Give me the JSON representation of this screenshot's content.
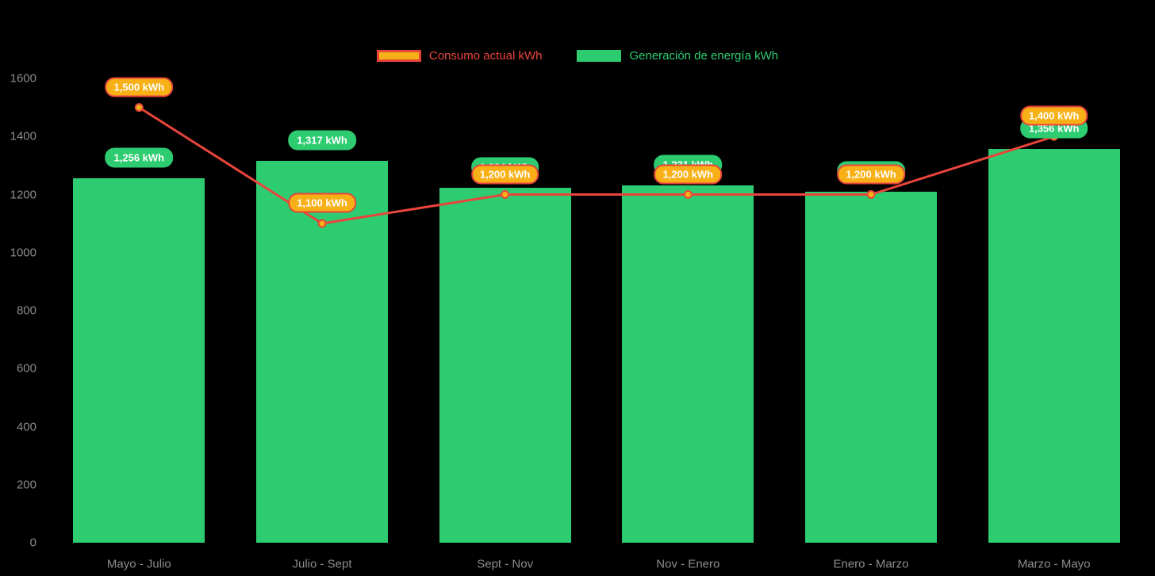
{
  "chart_data": {
    "type": "bar",
    "title": "",
    "categories": [
      "Mayo - Julio",
      "Julio - Sept",
      "Sept - Nov",
      "Nov - Enero",
      "Enero - Marzo",
      "Marzo - Mayo"
    ],
    "series": [
      {
        "name": "Generación de energía kWh",
        "type": "bar",
        "color": "#2ecc71",
        "values": [
          1256,
          1317,
          1224,
          1231,
          1210,
          1356
        ],
        "labels": [
          "1,256 kWh",
          "1,317 kWh",
          "1,224 kWh",
          "1,231 kWh",
          "1,210 kWh",
          "1,356 kWh"
        ]
      },
      {
        "name": "Consumo actual kWh",
        "type": "line",
        "color": "#e8453c",
        "point_color": "#f8b016",
        "values": [
          1500,
          1100,
          1200,
          1200,
          1200,
          1400
        ],
        "labels": [
          "1,500 kWh",
          "1,100 kWh",
          "1,200 kWh",
          "1,200 kWh",
          "1,200 kWh",
          "1,400 kWh"
        ]
      }
    ],
    "ylim": [
      0,
      1600
    ],
    "yticks": [
      0,
      200,
      400,
      600,
      800,
      1000,
      1200,
      1400,
      1600
    ],
    "grid": false,
    "legend_position": "top"
  },
  "legend": {
    "items": [
      {
        "label": "Consumo actual kWh",
        "swatch_fill": "#f8b016",
        "swatch_border": "#e8453c",
        "text_color": "#e8453c"
      },
      {
        "label": "Generación de energía kWh",
        "swatch_fill": "#2ecc71",
        "swatch_border": "#2ecc71",
        "text_color": "#2ecc71"
      }
    ]
  },
  "colors": {
    "background": "#000000",
    "axis_text": "#8c8c8c",
    "bar": "#2ecc71",
    "line": "#e8453c",
    "point": "#f8b016",
    "bar_label_bg": "#2ecc71",
    "line_label_bg": "#f8b016",
    "line_label_border": "#e8453c",
    "label_text": "#ffffff"
  }
}
